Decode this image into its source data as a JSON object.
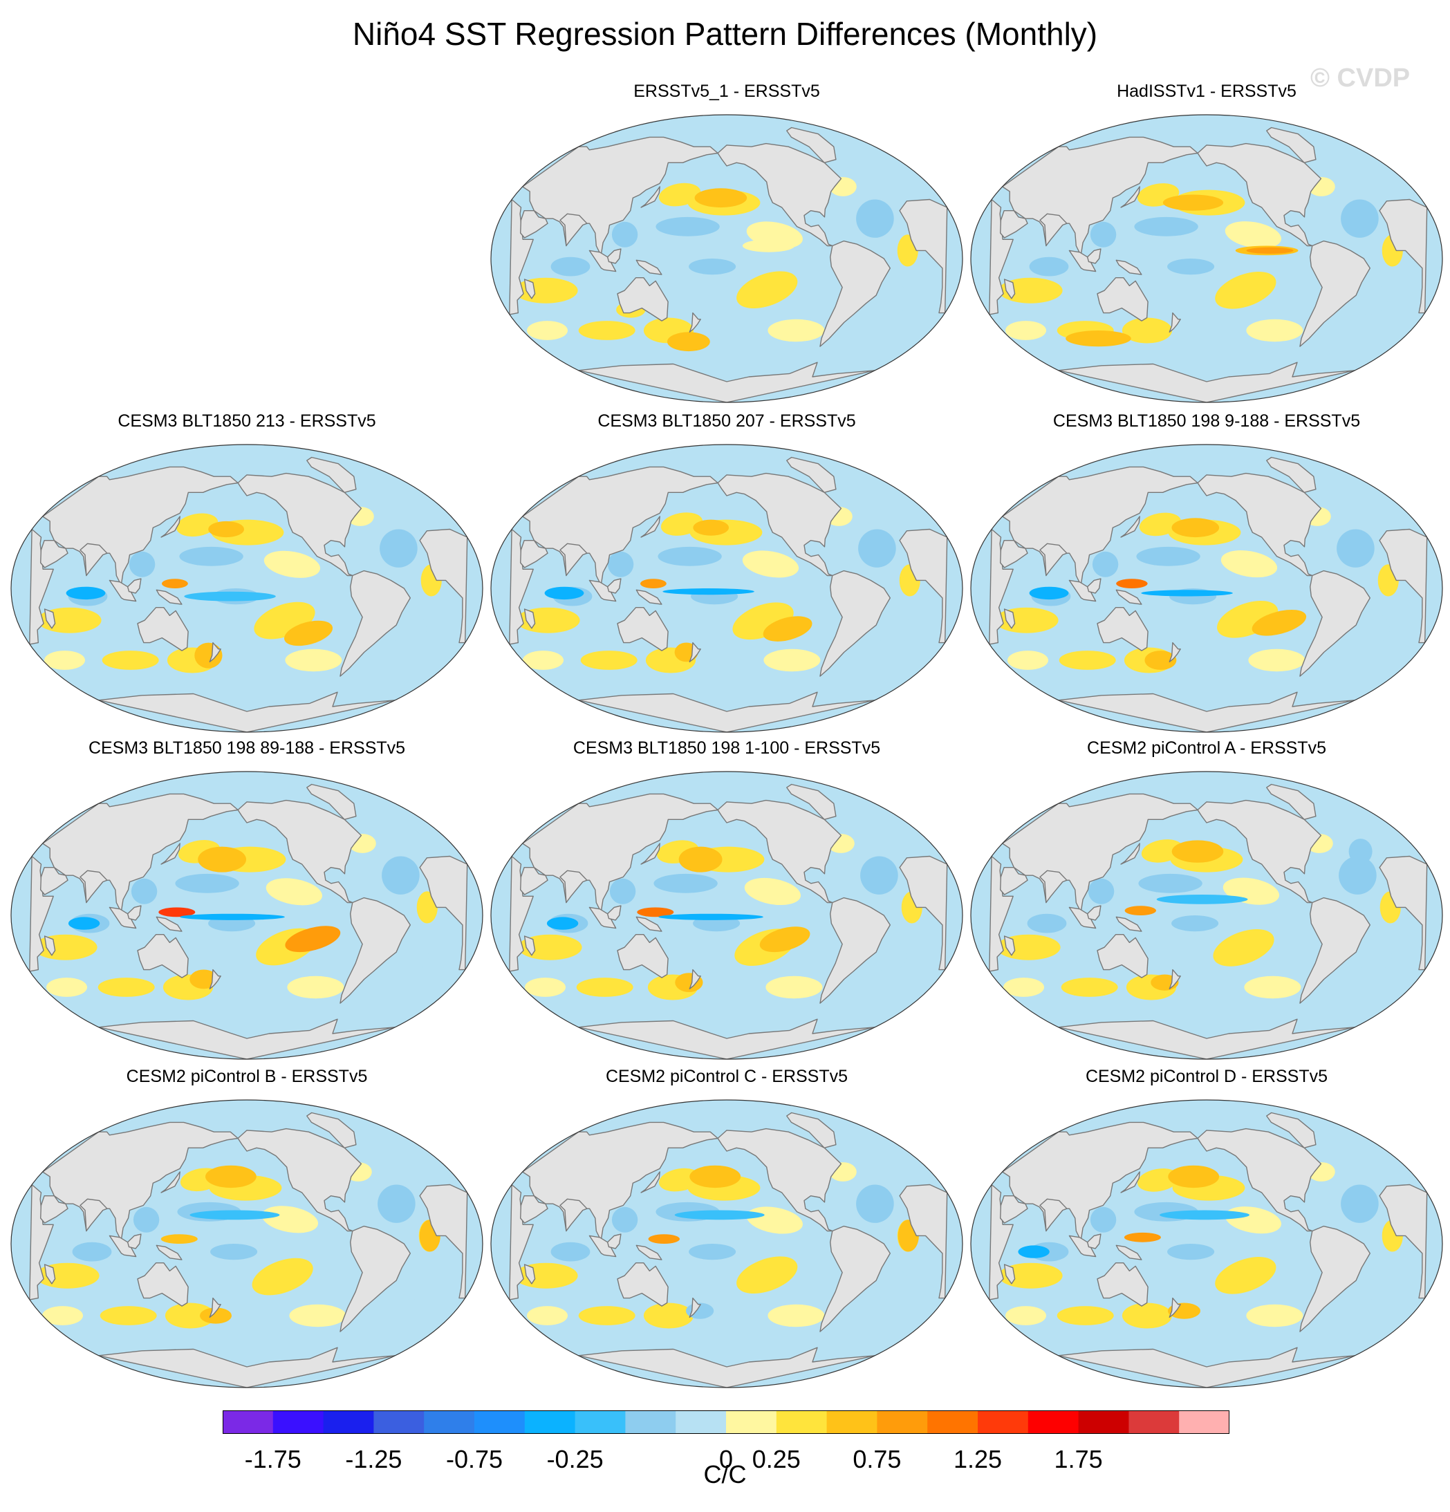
{
  "title": "Niño4 SST Regression Pattern Differences (Monthly)",
  "watermark": "© CVDP",
  "units": "C/C",
  "colors": {
    "land": "#e3e3e3",
    "coast": "#777777",
    "levels": [
      "#7b29e6",
      "#3a10ff",
      "#1a20ee",
      "#3b5fe0",
      "#2f7fea",
      "#1e8ffc",
      "#0bb2ff",
      "#39c0fa",
      "#8ecdef",
      "#b7e1f3",
      "#fff7a0",
      "#ffe43c",
      "#ffc218",
      "#ff9c0b",
      "#ff7400",
      "#ff3a0a",
      "#fe0000",
      "#cd0000",
      "#dc3a3a",
      "#ffb0b0"
    ]
  },
  "colorbar": {
    "labels": [
      "-1.75",
      "-1.25",
      "-0.75",
      "-0.25",
      "0",
      "0.25",
      "0.75",
      "1.25",
      "1.75"
    ],
    "label_boundary_index": [
      1,
      3,
      5,
      7,
      10,
      11,
      13,
      15,
      17
    ]
  },
  "panels": [
    {
      "title": "ERSSTv5_1 - ERSSTv5"
    },
    {
      "title": "HadISSTv1 - ERSSTv5"
    },
    {
      "title": "CESM3 BLT1850 213 - ERSSTv5"
    },
    {
      "title": "CESM3 BLT1850 207 - ERSSTv5"
    },
    {
      "title": "CESM3 BLT1850 198 9-188 - ERSSTv5"
    },
    {
      "title": "CESM3 BLT1850 198 89-188 - ERSSTv5"
    },
    {
      "title": "CESM3 BLT1850 198 1-100 - ERSSTv5"
    },
    {
      "title": "CESM2 piControl A - ERSSTv5"
    },
    {
      "title": "CESM2 piControl B - ERSSTv5"
    },
    {
      "title": "CESM2 piControl C - ERSSTv5"
    },
    {
      "title": "CESM2 piControl D - ERSSTv5"
    }
  ]
}
